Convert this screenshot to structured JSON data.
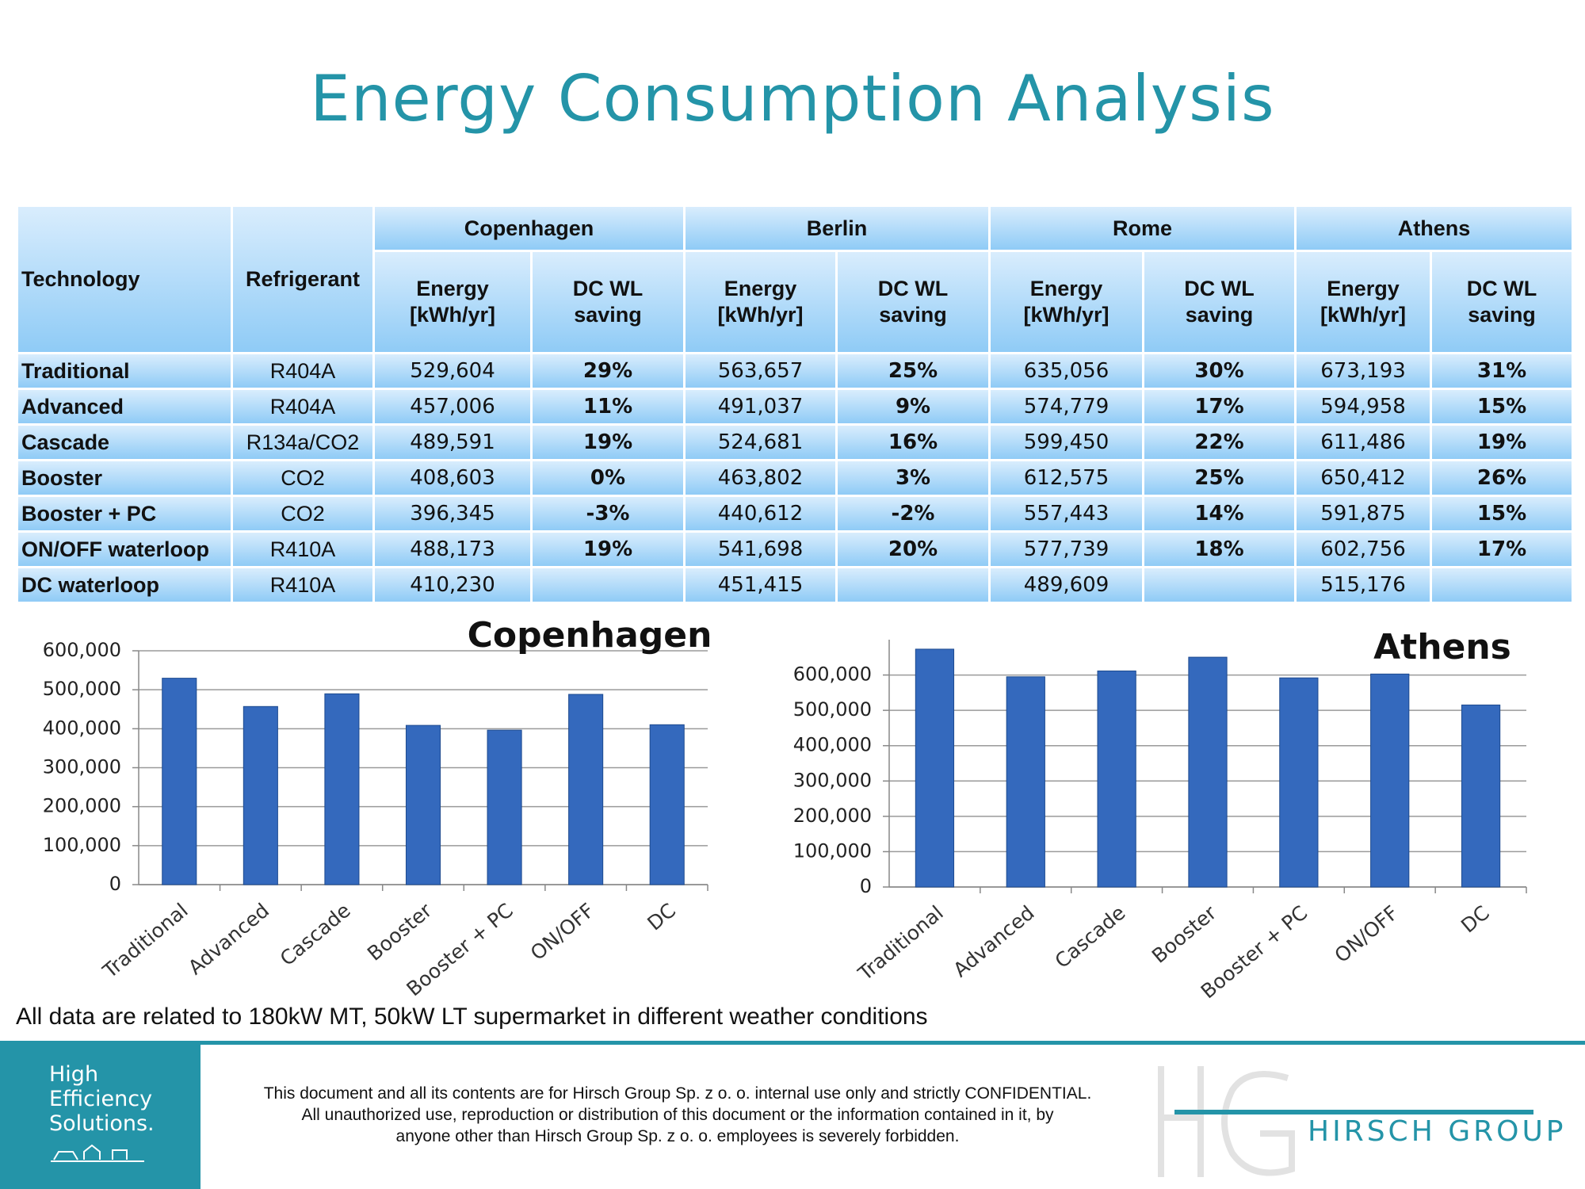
{
  "title": "Energy Consumption Analysis",
  "table": {
    "header": {
      "technology": "Technology",
      "refrigerant": "Refrigerant",
      "cities": [
        "Copenhagen",
        "Berlin",
        "Rome",
        "Athens"
      ],
      "subheaders": [
        "Energy\n[kWh/yr]",
        "DC WL\nsaving",
        "Energy\n[kWh/yr]",
        "DC WL\nsaving",
        "Energy\n[kWh/yr]",
        "DC WL\nsaving",
        "Energy\n[kWh/yr]",
        "DC WL\nsaving"
      ]
    },
    "rows": [
      [
        "Traditional",
        "R404A",
        "529,604",
        "29%",
        "563,657",
        "25%",
        "635,056",
        "30%",
        "673,193",
        "31%"
      ],
      [
        "Advanced",
        "R404A",
        "457,006",
        "11%",
        "491,037",
        "9%",
        "574,779",
        "17%",
        "594,958",
        "15%"
      ],
      [
        "Cascade",
        "R134a/CO2",
        "489,591",
        "19%",
        "524,681",
        "16%",
        "599,450",
        "22%",
        "611,486",
        "19%"
      ],
      [
        "Booster",
        "CO2",
        "408,603",
        "0%",
        "463,802",
        "3%",
        "612,575",
        "25%",
        "650,412",
        "26%"
      ],
      [
        "Booster + PC",
        "CO2",
        "396,345",
        "-3%",
        "440,612",
        "-2%",
        "557,443",
        "14%",
        "591,875",
        "15%"
      ],
      [
        "ON/OFF waterloop",
        "R410A",
        "488,173",
        "19%",
        "541,698",
        "20%",
        "577,739",
        "18%",
        "602,756",
        "17%"
      ],
      [
        "DC waterloop",
        "R410A",
        "410,230",
        null,
        "451,415",
        null,
        "489,609",
        null,
        "515,176",
        null
      ]
    ]
  },
  "chart_data": [
    {
      "type": "bar",
      "title": "Copenhagen",
      "categories": [
        "Traditional",
        "Advanced",
        "Cascade",
        "Booster",
        "Booster + PC",
        "ON/OFF",
        "DC"
      ],
      "values": [
        529604,
        457006,
        489591,
        408603,
        396345,
        488173,
        410230
      ],
      "color": "#3469bd",
      "ylim": [
        0,
        600000
      ],
      "yticks": [
        0,
        {
          "value": 100000,
          "label": "100,000"
        },
        {
          "value": 200000,
          "label": "200,000"
        },
        {
          "value": 300000,
          "label": "300,000"
        },
        {
          "value": 400000,
          "label": "400,000"
        },
        {
          "value": 500000,
          "label": "500,000"
        },
        {
          "value": 600000,
          "label": "600,000"
        }
      ],
      "grid": true
    },
    {
      "type": "bar",
      "title": "Athens",
      "categories": [
        "Traditional",
        "Advanced",
        "Cascade",
        "Booster",
        "Booster + PC",
        "ON/OFF",
        "DC"
      ],
      "values": [
        673193,
        594958,
        611486,
        650412,
        591875,
        602756,
        515176
      ],
      "color": "#3469bd",
      "ylim": [
        0,
        700000
      ],
      "yticks": [
        0,
        {
          "value": 100000,
          "label": "100,000"
        },
        {
          "value": 200000,
          "label": "200,000"
        },
        {
          "value": 300000,
          "label": "300,000"
        },
        {
          "value": 400000,
          "label": "400,000"
        },
        {
          "value": 500000,
          "label": "500,000"
        },
        {
          "value": 600000,
          "label": "600,000"
        }
      ],
      "grid": true
    }
  ],
  "note": "All data are related to 180kW MT, 50kW LT supermarket in different weather conditions",
  "footer": {
    "badge": [
      "High",
      "Efficiency",
      "Solutions."
    ],
    "confidential": [
      "This document and all its contents are for Hirsch Group Sp. z o. o. internal use only and strictly CONFIDENTIAL.",
      "All unauthorized use, reproduction or distribution of this document or the information contained in it, by",
      "anyone other than Hirsch Group Sp. z o. o. employees is severely forbidden."
    ],
    "brand": "HIRSCH GROUP"
  }
}
